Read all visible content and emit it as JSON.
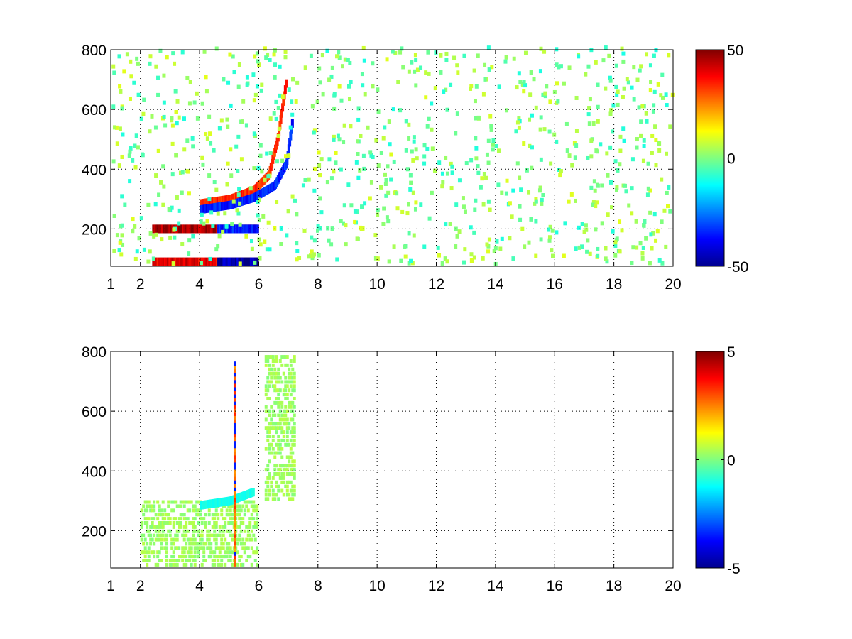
{
  "chart_data": [
    {
      "type": "heatmap",
      "panel": "top",
      "x_range": [
        1,
        20
      ],
      "y_range": [
        75,
        800
      ],
      "x_ticks": [
        1,
        2,
        4,
        6,
        8,
        10,
        12,
        14,
        16,
        18,
        20
      ],
      "x_tick_labels": [
        "1",
        "2",
        "4",
        "6",
        "8",
        "10",
        "12",
        "14",
        "16",
        "18",
        "20"
      ],
      "y_ticks": [
        200,
        400,
        600,
        800
      ],
      "y_tick_labels": [
        "200",
        "400",
        "600",
        "800"
      ],
      "grid": true,
      "colormap": "jet",
      "colorbar": {
        "range": [
          -50,
          50
        ],
        "ticks": [
          50,
          0,
          -50
        ],
        "tick_labels": [
          "50",
          "0",
          "-50"
        ]
      },
      "features": [
        {
          "kind": "band",
          "x": [
            2.4,
            5.9
          ],
          "y": 200,
          "value": 45
        },
        {
          "kind": "band",
          "x": [
            2.4,
            5.9
          ],
          "y": 90,
          "value": 40
        },
        {
          "kind": "band",
          "x": [
            4.6,
            5.9
          ],
          "y": 90,
          "value": -45
        },
        {
          "kind": "band",
          "x": [
            4.6,
            5.9
          ],
          "y": 200,
          "value": -35
        },
        {
          "kind": "ridge",
          "points": [
            [
              4.0,
              285
            ],
            [
              5.0,
              300
            ],
            [
              5.8,
              330
            ],
            [
              6.3,
              380
            ],
            [
              6.6,
              500
            ],
            [
              6.9,
              700
            ]
          ],
          "value": 38
        },
        {
          "kind": "ridge",
          "points": [
            [
              4.0,
              265
            ],
            [
              5.0,
              280
            ],
            [
              5.8,
              305
            ],
            [
              6.5,
              345
            ],
            [
              6.9,
              420
            ],
            [
              7.1,
              560
            ]
          ],
          "value": -40
        }
      ]
    },
    {
      "type": "heatmap",
      "panel": "bottom",
      "x_range": [
        1,
        20
      ],
      "y_range": [
        75,
        800
      ],
      "x_ticks": [
        1,
        2,
        4,
        6,
        8,
        10,
        12,
        14,
        16,
        18,
        20
      ],
      "x_tick_labels": [
        "1",
        "2",
        "4",
        "6",
        "8",
        "10",
        "12",
        "14",
        "16",
        "18",
        "20"
      ],
      "y_ticks": [
        200,
        400,
        600,
        800
      ],
      "y_tick_labels": [
        "200",
        "400",
        "600",
        "800"
      ],
      "grid": true,
      "colormap": "jet",
      "colorbar": {
        "range": [
          -5,
          5
        ],
        "ticks": [
          5,
          0,
          -5
        ],
        "tick_labels": [
          "5",
          "0",
          "-5"
        ]
      },
      "features": [
        {
          "kind": "region",
          "x": [
            2.0,
            5.9
          ],
          "y": [
            80,
            300
          ],
          "value": 0.3
        },
        {
          "kind": "region",
          "x": [
            6.2,
            7.2
          ],
          "y": [
            300,
            780
          ],
          "value": 0.3
        },
        {
          "kind": "ridge",
          "points": [
            [
              4.0,
              285
            ],
            [
              5.0,
              300
            ],
            [
              5.8,
              330
            ]
          ],
          "value": -1.2
        },
        {
          "kind": "line",
          "x": 5.15,
          "y": [
            80,
            760
          ],
          "value": 3.5
        }
      ]
    }
  ]
}
